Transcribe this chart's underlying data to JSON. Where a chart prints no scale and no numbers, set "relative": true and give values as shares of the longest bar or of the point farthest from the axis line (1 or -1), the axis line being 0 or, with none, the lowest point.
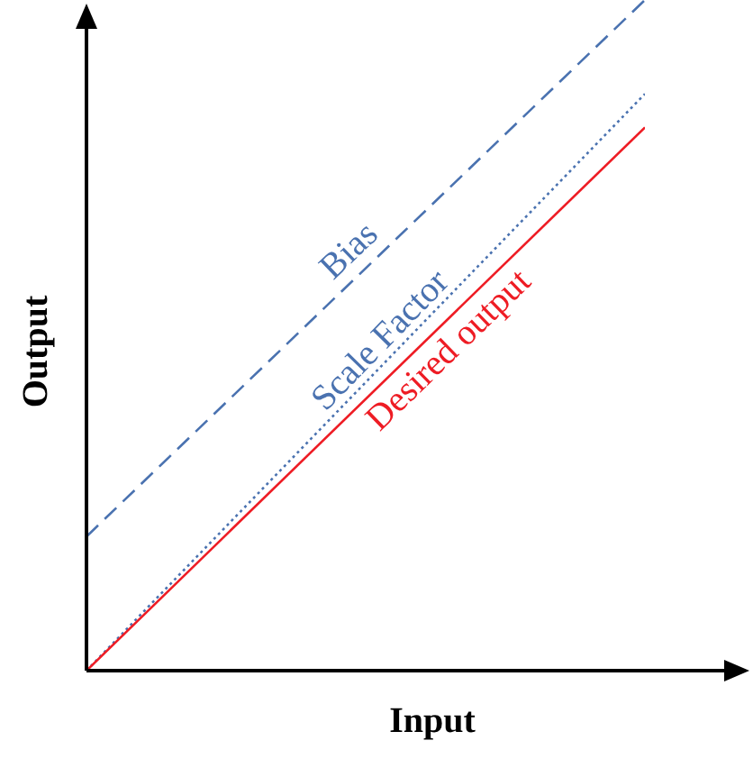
{
  "chart_data": {
    "type": "line",
    "relative": true,
    "xlabel": "Input",
    "ylabel": "Output",
    "categories": [
      null,
      null
    ],
    "legend": false,
    "series": [
      {
        "name": "Bias",
        "color": "#4a72b0",
        "values": [
          0.2,
          1
        ],
        "line_style": "dashed"
      },
      {
        "name": "Scale Factor",
        "color": "#4a72b0",
        "values": [
          0,
          0.86
        ],
        "line_style": "dotted"
      },
      {
        "name": "Desired output",
        "color": "#ee1c24",
        "values": [
          0,
          0.81
        ],
        "line_style": "solid"
      }
    ]
  }
}
